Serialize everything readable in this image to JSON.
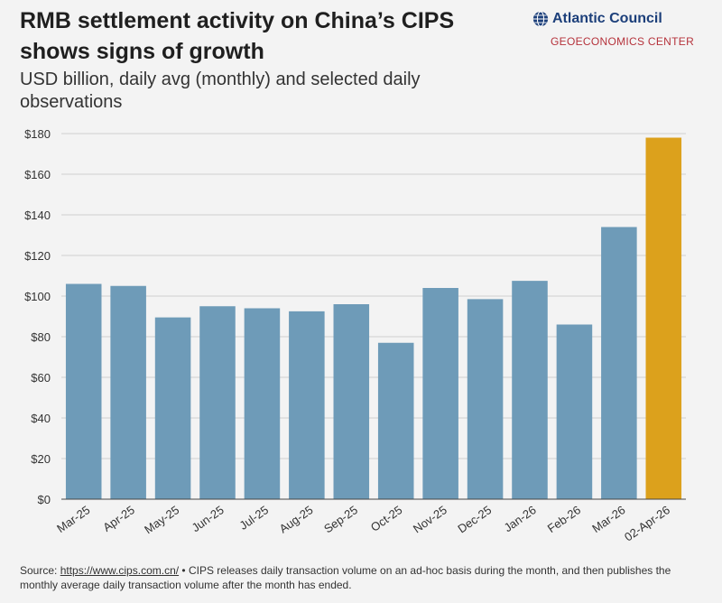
{
  "header": {
    "title": "RMB settlement activity on China’s CIPS shows signs of growth",
    "subtitle": "USD billion, daily avg (monthly) and selected daily observations"
  },
  "logo": {
    "name": "Atlantic Council",
    "sub": "GEOECONOMICS CENTER"
  },
  "footnote": {
    "prefix": "Source: ",
    "link": "https://www.cips.com.cn/",
    "text": " • CIPS releases daily transaction volume on an ad-hoc basis during the month, and then publishes the monthly average daily transaction volume after the month has ended."
  },
  "chart_data": {
    "type": "bar",
    "title": "RMB settlement activity on China’s CIPS shows signs of growth",
    "subtitle": "USD billion, daily avg (monthly) and selected daily observations",
    "xlabel": "",
    "ylabel": "",
    "categories": [
      "Mar-25",
      "Apr-25",
      "May-25",
      "Jun-25",
      "Jul-25",
      "Aug-25",
      "Sep-25",
      "Oct-25",
      "Nov-25",
      "Dec-25",
      "Jan-26",
      "Feb-26",
      "Mar-26",
      "02-Apr-26"
    ],
    "values": [
      106,
      105,
      89.5,
      95,
      94,
      92.5,
      96,
      77,
      104,
      98.5,
      107.5,
      86,
      134,
      178
    ],
    "highlight_index": 13,
    "ylim": [
      0,
      180
    ],
    "yticks": [
      0,
      20,
      40,
      60,
      80,
      100,
      120,
      140,
      160,
      180
    ],
    "ytick_labels": [
      "$0",
      "$20",
      "$40",
      "$60",
      "$80",
      "$100",
      "$120",
      "$140",
      "$160",
      "$180"
    ],
    "grid": true,
    "colors": {
      "bar": "#6e9bb8",
      "highlight": "#dca11c",
      "grid": "#cfcfcf"
    }
  }
}
